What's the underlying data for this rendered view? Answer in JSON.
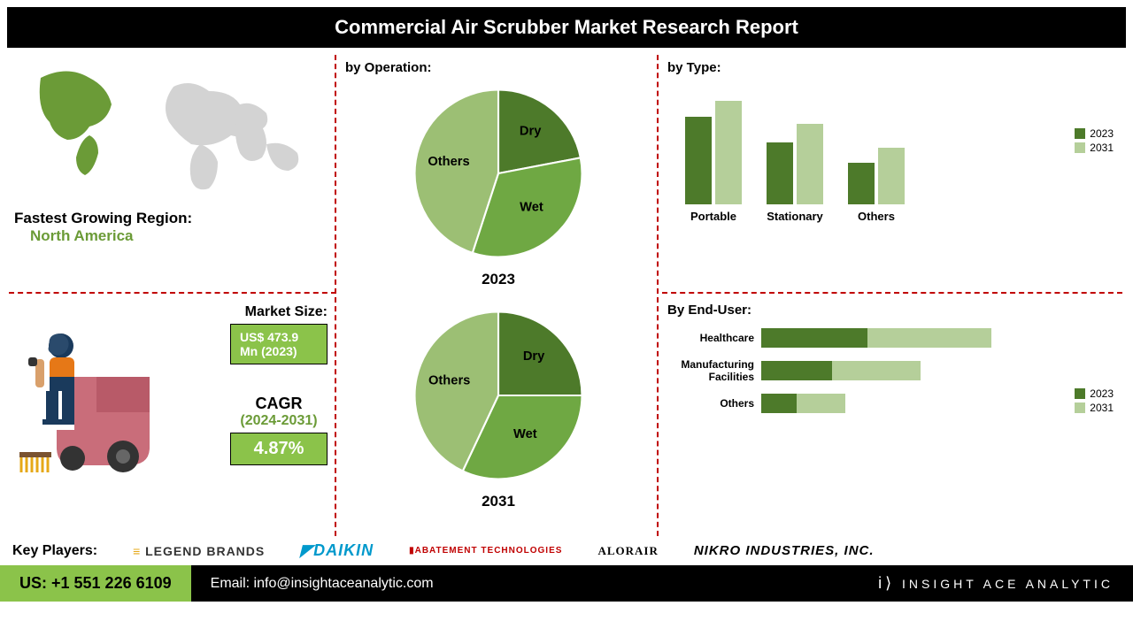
{
  "header": {
    "title": "Commercial Air Scrubber Market Research Report"
  },
  "region": {
    "label": "Fastest Growing  Region:",
    "value": "North America",
    "highlight_color": "#6b9b37",
    "map_land": "#d3d3d3"
  },
  "market_size": {
    "label": "Market Size:",
    "value": "US$ 473.9 Mn (2023)",
    "box_bg": "#8bc34a",
    "box_text": "#ffffff"
  },
  "cagr": {
    "label": "CAGR",
    "period": "(2024-2031)",
    "value": "4.87%",
    "period_color": "#6b9b37"
  },
  "pie_2023": {
    "title": "by Operation:",
    "year": "2023",
    "slices": [
      {
        "label": "Dry",
        "value": 22,
        "color": "#4d7a2a"
      },
      {
        "label": "Wet",
        "value": 33,
        "color": "#6fa843"
      },
      {
        "label": "Others",
        "value": 45,
        "color": "#9cbf74"
      }
    ]
  },
  "pie_2031": {
    "year": "2031",
    "slices": [
      {
        "label": "Dry",
        "value": 25,
        "color": "#4d7a2a"
      },
      {
        "label": "Wet",
        "value": 32,
        "color": "#6fa843"
      },
      {
        "label": "Others",
        "value": 43,
        "color": "#9cbf74"
      }
    ]
  },
  "bar_type": {
    "title": "by Type:",
    "categories": [
      "Portable",
      "Stationary",
      "Others"
    ],
    "series": [
      {
        "name": "2023",
        "color": "#4d7a2a",
        "values": [
          85,
          60,
          40
        ]
      },
      {
        "name": "2031",
        "color": "#b5cf9a",
        "values": [
          100,
          78,
          55
        ]
      }
    ],
    "max": 120
  },
  "bar_enduser": {
    "title": "By End-User:",
    "categories": [
      "Healthcare",
      "Manufacturing Facilities",
      "Others"
    ],
    "series": [
      {
        "name": "2023",
        "color": "#4d7a2a",
        "values": [
          120,
          80,
          40
        ]
      },
      {
        "name": "2031",
        "color": "#b5cf9a",
        "values": [
          140,
          100,
          55
        ]
      }
    ],
    "max": 300
  },
  "key_players": {
    "label": "Key Players:",
    "logos": [
      "LEGEND BRANDS",
      "DAIKIN",
      "ABATEMENT TECHNOLOGIES",
      "ALORAIR",
      "NIKRO INDUSTRIES, INC."
    ]
  },
  "footer": {
    "phone": "US: +1 551 226 6109",
    "email": "Email: info@insightaceanalytic.com",
    "brand": "INSIGHT ACE ANALYTIC"
  },
  "colors": {
    "divider": "#c00000",
    "header_bg": "#000000",
    "footer_green": "#8bc34a"
  }
}
